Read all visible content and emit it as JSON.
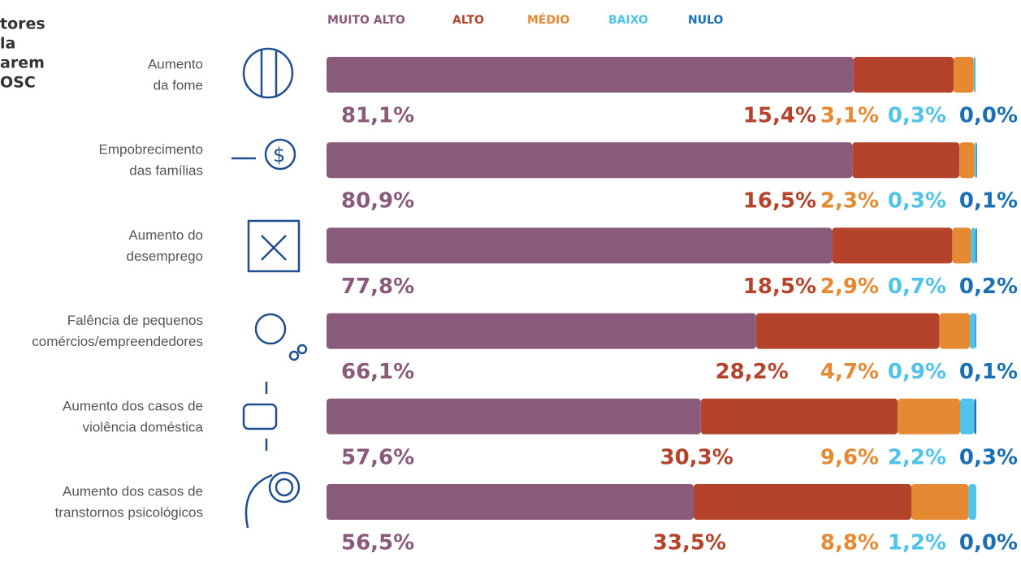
{
  "chart_data": {
    "type": "stacked_hbar",
    "title_lines": [
      "tores",
      "la",
      "arem",
      "OSC"
    ],
    "categories": [
      [
        "Aumento",
        "da fome"
      ],
      [
        "Empobrecimento",
        "das famílias"
      ],
      [
        "Aumento do",
        "desemprego"
      ],
      [
        "Falência de pequenos",
        "comércios/empreendedores"
      ],
      [
        "Aumento dos casos de",
        "violência doméstica"
      ],
      [
        "Aumento dos casos de",
        "transtornos psicológicos"
      ]
    ],
    "xlim": [
      0,
      100
    ],
    "series": [
      {
        "name": "MUITO ALTO",
        "color": "#8a5a7b",
        "values": [
          81.1,
          80.9,
          77.8,
          66.1,
          57.6,
          56.5
        ],
        "value_labels": [
          "81,1%",
          "80,9%",
          "77,8%",
          "66,1%",
          "57,6%",
          "56,5%"
        ]
      },
      {
        "name": "ALTO",
        "color": "#b5432c",
        "values": [
          15.4,
          16.5,
          18.5,
          28.2,
          30.3,
          33.5
        ],
        "value_labels": [
          "15,4%",
          "16,5%",
          "18,5%",
          "28,2%",
          "30,3%",
          "33,5%"
        ]
      },
      {
        "name": "MÉDIO",
        "color": "#e58a33",
        "values": [
          3.1,
          2.3,
          2.9,
          4.7,
          9.6,
          8.8
        ],
        "value_labels": [
          "3,1%",
          "2,3%",
          "2,9%",
          "4,7%",
          "9,6%",
          "8,8%"
        ]
      },
      {
        "name": "BAIXO",
        "color": "#4fc3ea",
        "values": [
          0.3,
          0.3,
          0.7,
          0.9,
          2.2,
          1.2
        ],
        "value_labels": [
          "0,3%",
          "0,3%",
          "0,7%",
          "0,9%",
          "2,2%",
          "1,2%"
        ]
      },
      {
        "name": "NULO",
        "color": "#1a6fb5",
        "values": [
          0.0,
          0.1,
          0.2,
          0.1,
          0.3,
          0.0
        ],
        "value_labels": [
          "0,0%",
          "0,1%",
          "0,2%",
          "0,1%",
          "0,3%",
          "0,0%"
        ]
      }
    ]
  }
}
